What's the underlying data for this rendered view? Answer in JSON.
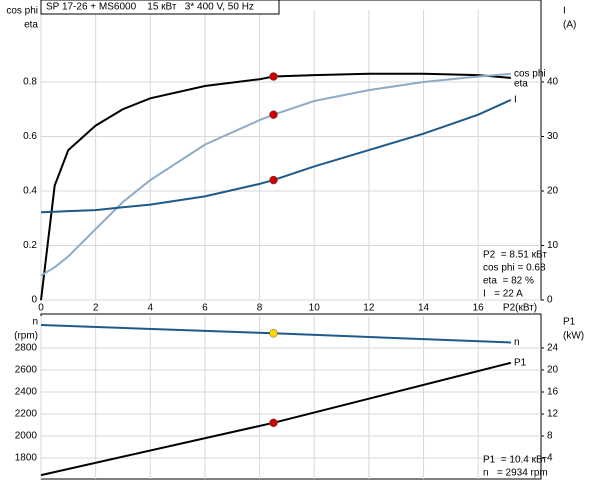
{
  "chart_data": [
    {
      "type": "line",
      "title": "SP 17-26 + MS6000    15 кВт   3* 400 V, 50 Hz",
      "ylabel_lines": [
        "cos phi",
        "eta"
      ],
      "y2label_lines": [
        "I",
        "(A)"
      ],
      "xlabel": "P2(кВт)",
      "x": [
        0,
        0.5,
        1,
        2,
        3,
        4,
        6,
        8,
        8.51,
        10,
        12,
        14,
        16,
        17.2
      ],
      "series": [
        {
          "name": "eta",
          "color": "#000000",
          "marker_color": "#cc0000",
          "values": [
            0,
            0.42,
            0.55,
            0.64,
            0.7,
            0.74,
            0.785,
            0.81,
            0.82,
            0.825,
            0.83,
            0.83,
            0.825,
            0.815
          ]
        },
        {
          "name": "cos phi",
          "color": "#8eacc8",
          "marker_color": "#cc0000",
          "values": [
            0.09,
            0.12,
            0.16,
            0.26,
            0.36,
            0.44,
            0.57,
            0.66,
            0.68,
            0.73,
            0.77,
            0.8,
            0.82,
            0.83
          ]
        },
        {
          "name": "I",
          "color": "#1f5a8a",
          "marker_color": "#cc0000",
          "axis": "y2",
          "values": [
            16.1,
            16.2,
            16.3,
            16.5,
            17,
            17.5,
            19,
            21.3,
            22,
            24.5,
            27.5,
            30.5,
            34,
            36.7
          ]
        }
      ],
      "marker_x": 8.51,
      "xlim": [
        0,
        18.3
      ],
      "xticks": [
        0,
        2,
        4,
        6,
        8,
        10,
        12,
        14,
        16
      ],
      "ylim": [
        0,
        1.064
      ],
      "yticks": [
        0,
        0.2,
        0.4,
        0.6,
        0.8
      ],
      "y2lim": [
        0,
        53.2
      ],
      "y2ticks": [
        0,
        10,
        20,
        30,
        40
      ],
      "grid": true,
      "annotations": [
        "P2  = 8.51 кВт",
        "cos phi = 0.68",
        "eta  = 82 %",
        "I   = 22 A"
      ]
    },
    {
      "type": "line",
      "ylabel_lines": [
        "n",
        "(rpm)"
      ],
      "y2label_lines": [
        "P1",
        "(kW)"
      ],
      "x": [
        0,
        8.51,
        17.2
      ],
      "series": [
        {
          "name": "n",
          "color": "#1f5a8a",
          "marker_color": "#ffd700",
          "values": [
            3009,
            2934,
            2850
          ]
        },
        {
          "name": "P1",
          "color": "#000000",
          "marker_color": "#cc0000",
          "axis": "y2",
          "values": [
            0.9,
            10.4,
            21.3
          ]
        }
      ],
      "marker_x": 8.51,
      "xlim": [
        0,
        18.3
      ],
      "xticks": [
        0,
        2,
        4,
        6,
        8,
        10,
        12,
        14,
        16
      ],
      "ylim": [
        1609,
        3091
      ],
      "yticks": [
        1800,
        2000,
        2200,
        2400,
        2600,
        2800
      ],
      "y2lim": [
        0.2,
        29.8
      ],
      "y2ticks": [
        4,
        8,
        12,
        16,
        20,
        24
      ],
      "grid": true,
      "annotations": [
        "P1  = 10.4 кВт",
        "n   = 2934 rpm"
      ]
    }
  ]
}
